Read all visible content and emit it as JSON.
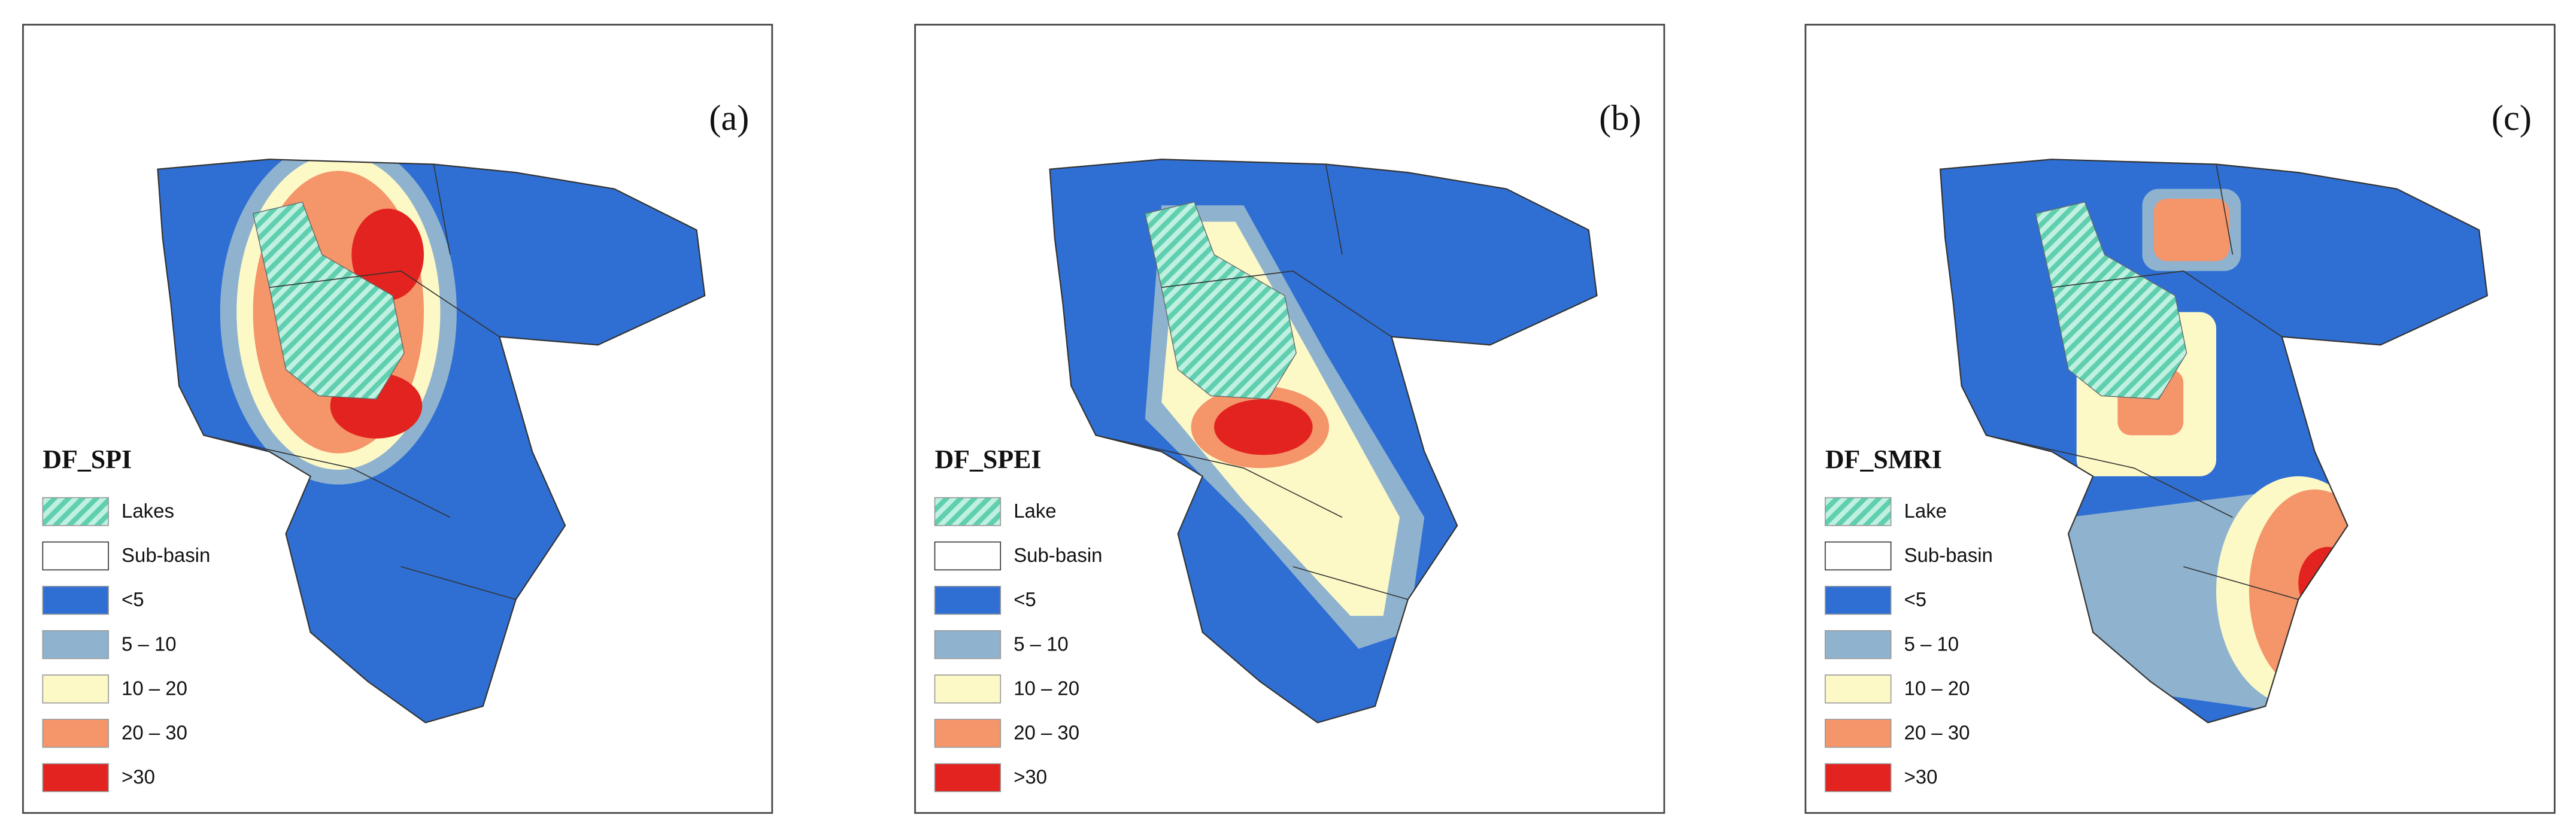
{
  "panels": [
    {
      "label": "(a)",
      "legend_title": "DF_SPI",
      "legend": [
        {
          "label": "Lakes"
        },
        {
          "label": "Sub-basin"
        },
        {
          "label": "<5",
          "color": "#2f6fd3"
        },
        {
          "label": "5 – 10",
          "color": "#8fb3cf"
        },
        {
          "label": "10 – 20",
          "color": "#fdf9c6"
        },
        {
          "label": "20 – 30",
          "color": "#f4956a"
        },
        {
          "label": ">30",
          "color": "#e3231f"
        }
      ]
    },
    {
      "label": "(b)",
      "legend_title": "DF_SPEI",
      "legend": [
        {
          "label": "Lake"
        },
        {
          "label": "Sub-basin"
        },
        {
          "label": "<5",
          "color": "#2f6fd3"
        },
        {
          "label": "5 – 10",
          "color": "#8fb3cf"
        },
        {
          "label": "10 – 20",
          "color": "#fdf9c6"
        },
        {
          "label": "20 – 30",
          "color": "#f4956a"
        },
        {
          "label": ">30",
          "color": "#e3231f"
        }
      ]
    },
    {
      "label": "(c)",
      "legend_title": "DF_SMRI",
      "legend": [
        {
          "label": "Lake"
        },
        {
          "label": "Sub-basin"
        },
        {
          "label": "<5",
          "color": "#2f6fd3"
        },
        {
          "label": "5 – 10",
          "color": "#8fb3cf"
        },
        {
          "label": "10 – 20",
          "color": "#fdf9c6"
        },
        {
          "label": "20 – 30",
          "color": "#f4956a"
        },
        {
          "label": ">30",
          "color": "#e3231f"
        }
      ]
    }
  ]
}
